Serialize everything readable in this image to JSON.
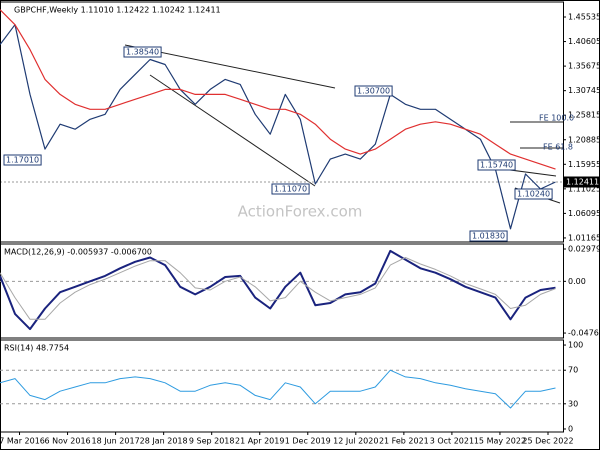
{
  "chart_data": [
    {
      "type": "line",
      "title": "GBPCHF,Weekly  1.11010 1.12422 1.10242 1.12411",
      "watermark": "ActionForex.com",
      "x": [
        0,
        1,
        2,
        3,
        4,
        5,
        6,
        7,
        8,
        9,
        10,
        11,
        12,
        13,
        14,
        15,
        16,
        17,
        18,
        19,
        20,
        21,
        22,
        23,
        24,
        25,
        26,
        27,
        28,
        29,
        30,
        31,
        32,
        33,
        34,
        35,
        36,
        37
      ],
      "xlim": [
        0,
        37.5
      ],
      "series": [
        {
          "name": "GBPCHF",
          "color": "#1f3b73",
          "values": [
            1.4,
            1.44,
            1.3,
            1.19,
            1.24,
            1.23,
            1.25,
            1.26,
            1.31,
            1.34,
            1.37,
            1.36,
            1.31,
            1.28,
            1.31,
            1.33,
            1.32,
            1.26,
            1.22,
            1.3,
            1.25,
            1.12,
            1.17,
            1.18,
            1.17,
            1.2,
            1.3,
            1.28,
            1.27,
            1.27,
            1.25,
            1.23,
            1.21,
            1.15,
            1.03,
            1.14,
            1.11,
            1.124
          ]
        },
        {
          "name": "MA",
          "color": "#e03030",
          "values": [
            1.47,
            1.44,
            1.39,
            1.33,
            1.3,
            1.28,
            1.27,
            1.27,
            1.28,
            1.29,
            1.3,
            1.31,
            1.31,
            1.3,
            1.3,
            1.3,
            1.29,
            1.28,
            1.27,
            1.27,
            1.26,
            1.24,
            1.21,
            1.19,
            1.18,
            1.19,
            1.21,
            1.23,
            1.24,
            1.245,
            1.24,
            1.23,
            1.22,
            1.2,
            1.18,
            1.17,
            1.16,
            1.15
          ]
        }
      ],
      "ylim": [
        1.0035,
        1.4855
      ],
      "yticks": [
        1.45535,
        1.40605,
        1.35675,
        1.30745,
        1.25815,
        1.20885,
        1.15955,
        1.11025,
        1.06095,
        1.01165
      ],
      "grid": false,
      "annotations": [
        "1.38540",
        "1.17010",
        "1.11070",
        "1.30700",
        "1.15740",
        "1.10240",
        "1.01830",
        "FE 100.0",
        "FE 61.8",
        "1.12411"
      ]
    },
    {
      "type": "line",
      "title": "MACD(12,26,9) -0.005937 -0.006700",
      "series": [
        {
          "name": "MACD",
          "color": "#1a237e",
          "values": [
            0.005,
            -0.03,
            -0.044,
            -0.025,
            -0.01,
            -0.005,
            0.0,
            0.005,
            0.012,
            0.018,
            0.022,
            0.015,
            -0.005,
            -0.012,
            -0.005,
            0.004,
            0.005,
            -0.015,
            -0.025,
            -0.005,
            0.008,
            -0.022,
            -0.02,
            -0.012,
            -0.01,
            -0.002,
            0.028,
            0.02,
            0.012,
            0.008,
            0.002,
            -0.005,
            -0.01,
            -0.015,
            -0.035,
            -0.015,
            -0.008,
            -0.005937
          ]
        },
        {
          "name": "Signal",
          "color": "#a8a8a8",
          "values": [
            0.008,
            -0.015,
            -0.035,
            -0.035,
            -0.02,
            -0.01,
            -0.003,
            0.002,
            0.008,
            0.014,
            0.019,
            0.019,
            0.008,
            -0.006,
            -0.008,
            0.0,
            0.004,
            -0.005,
            -0.018,
            -0.015,
            0.0,
            -0.01,
            -0.018,
            -0.015,
            -0.012,
            -0.006,
            0.015,
            0.022,
            0.016,
            0.011,
            0.005,
            -0.002,
            -0.007,
            -0.012,
            -0.025,
            -0.022,
            -0.012,
            -0.0067
          ]
        }
      ],
      "ylim": [
        -0.0522,
        0.0344
      ],
      "yticks": [
        0.029798,
        {
          "value": 0,
          "label": "0.00"
        },
        -0.047637
      ],
      "grid": true
    },
    {
      "type": "line",
      "title": "RSI(14) 48.7754",
      "series": [
        {
          "name": "RSI",
          "color": "#2e9be0",
          "values": [
            55,
            60,
            40,
            35,
            45,
            50,
            55,
            55,
            60,
            62,
            60,
            55,
            45,
            45,
            52,
            55,
            52,
            40,
            35,
            55,
            50,
            30,
            45,
            45,
            45,
            50,
            70,
            62,
            60,
            55,
            52,
            48,
            45,
            42,
            25,
            45,
            45,
            48.7754
          ]
        }
      ],
      "ylim": [
        -3.6,
        106
      ],
      "yticks": [
        100,
        70,
        30,
        0
      ],
      "grid": true,
      "xticks": [
        {
          "value": 1.3,
          "label": "27 Mar 2016"
        },
        {
          "value": 4.5,
          "label": "6 Nov 2016"
        },
        {
          "value": 7.7,
          "label": "18 Jun 2017"
        },
        {
          "value": 10.9,
          "label": "28 Jan 2018"
        },
        {
          "value": 14.1,
          "label": "9 Sep 2018"
        },
        {
          "value": 17.3,
          "label": "21 Apr 2019"
        },
        {
          "value": 20.5,
          "label": "1 Dec 2019"
        },
        {
          "value": 23.7,
          "label": "12 Jul 2020"
        },
        {
          "value": 26.9,
          "label": "21 Feb 2021"
        },
        {
          "value": 30.1,
          "label": "3 Oct 2021"
        },
        {
          "value": 33.3,
          "label": "15 May 2022"
        },
        {
          "value": 36.5,
          "label": "25 Dec 2022"
        }
      ]
    }
  ]
}
